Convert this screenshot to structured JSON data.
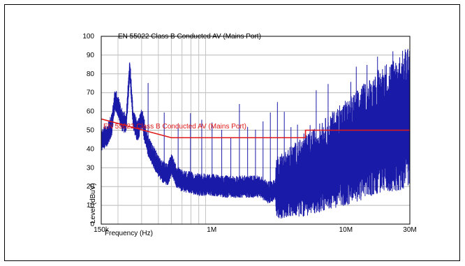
{
  "chart_data": {
    "type": "line",
    "title": "EN 55022 Class B Conducted AV (Mains Port)",
    "xlabel": "Frequency (Hz)",
    "ylabel": "Level (dBuV)",
    "x_scale": "log",
    "xlim": [
      150000,
      30000000
    ],
    "ylim": [
      0,
      100
    ],
    "grid": true,
    "x_ticks": [
      {
        "value": 150000,
        "label": "150k"
      },
      {
        "value": 1000000,
        "label": "1M"
      },
      {
        "value": 10000000,
        "label": "10M"
      },
      {
        "value": 30000000,
        "label": "30M"
      }
    ],
    "y_ticks": [
      0,
      10,
      20,
      30,
      40,
      50,
      60,
      70,
      80,
      90,
      100
    ],
    "series": [
      {
        "name": "",
        "color": "#1a1aa8",
        "x": [
          150000,
          165000,
          180000,
          190000,
          200000,
          215000,
          230000,
          245000,
          260000,
          280000,
          300000,
          330000,
          360000,
          400000,
          430000,
          470000,
          500000,
          550000,
          600000,
          700000,
          800000,
          1000000,
          1200000,
          1500000,
          1800000,
          2000000,
          2300000,
          2600000,
          3000000,
          3500000,
          4000000,
          5000000,
          6000000,
          8000000,
          10000000,
          13000000,
          16000000,
          20000000,
          25000000,
          30000000
        ],
        "y": [
          44,
          46,
          52,
          66,
          62,
          54,
          53,
          82,
          55,
          48,
          56,
          42,
          36,
          30,
          27,
          25,
          31,
          24,
          22,
          21,
          20,
          20,
          19,
          19,
          19,
          19,
          19,
          16,
          17,
          18,
          20,
          22,
          25,
          30,
          33,
          38,
          42,
          46,
          48,
          52
        ]
      },
      {
        "name": "EN 55022 Class B Conducted AV (Mains Port)",
        "color": "#e01818",
        "x": [
          150000,
          500000,
          500000,
          5000000,
          5000000,
          30000000
        ],
        "y": [
          56,
          46,
          46,
          46,
          50,
          50
        ]
      }
    ],
    "annotations": [
      "EN 55022 Class B Conducted AV (Mains Port)"
    ]
  }
}
